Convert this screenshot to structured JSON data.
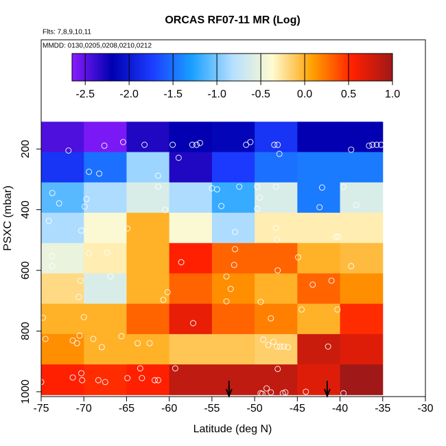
{
  "chart_data": {
    "type": "heatmap",
    "title": "ORCAS RF07-11 MR (Log)",
    "flights": "Flts: 7,8,9,10,11",
    "dates": "MMDD: 0130,0205,0208,0210,0212",
    "xlabel": "Latitude (deg N)",
    "ylabel": "PSXC (mbar)",
    "xlim": [
      -75,
      -30
    ],
    "xticks": [
      -75,
      -70,
      -65,
      -60,
      -55,
      -50,
      -45,
      -40,
      -35,
      -30
    ],
    "ylim": [
      1016,
      -160
    ],
    "yticks": [
      200,
      400,
      600,
      800,
      1000
    ],
    "x_edges": [
      -75,
      -70,
      -65,
      -60,
      -55,
      -50,
      -45,
      -40,
      -35
    ],
    "y_edges": [
      110,
      210,
      310,
      410,
      510,
      610,
      710,
      810,
      910,
      1010
    ],
    "z": [
      [
        -2.45,
        -2.6,
        -2.3,
        -2.2,
        -2.15,
        -1.8,
        -2.2,
        -2.2
      ],
      [
        -1.8,
        -1.5,
        -0.9,
        -2.3,
        -1.75,
        -1.5,
        -1.45,
        -1.45
      ],
      [
        -1.1,
        -0.85,
        -0.6,
        -0.85,
        -1.2,
        -0.6,
        -1.45,
        -0.6
      ],
      [
        -0.85,
        -0.4,
        0,
        -0.4,
        -0.85,
        -0.3,
        -0.3,
        -0.3
      ],
      [
        -0.5,
        -0.3,
        0,
        0.55,
        0.3,
        0.3,
        0,
        -0.05
      ],
      [
        -0.2,
        -0.6,
        0,
        0.3,
        0.15,
        0,
        0.3,
        0.15
      ],
      [
        0,
        0,
        0.3,
        0.65,
        0.3,
        0.2,
        0,
        0.5
      ],
      [
        0.15,
        0,
        0,
        -0.1,
        -0.1,
        -0.15,
        0.8,
        0.7
      ],
      [
        0.55,
        0.5,
        0.55,
        0.85,
        0.85,
        0.85,
        0.7,
        1.0
      ]
    ],
    "zlim": [
      -2.65,
      1.0
    ],
    "zticks": [
      -2.5,
      -2.0,
      -1.5,
      -1.0,
      -0.5,
      0.0,
      0.5,
      1.0
    ],
    "colors": [
      "#8a1cff",
      "#0000b0",
      "#1c3cff",
      "#1aa0ff",
      "#b5dfff",
      "#fffbd0",
      "#ffa000",
      "#ff2000",
      "#a01818"
    ],
    "points": {
      "x": [
        -71.8,
        -67.6,
        -65.4,
        -62.9,
        -59.6,
        -57.3,
        -56.4,
        -56.8,
        -51,
        -50.5,
        -47.7,
        -47.3,
        -47.1,
        -38.7,
        -36.6,
        -36.2,
        -35.7,
        -35.2,
        -58.9,
        -69.4,
        -68.2,
        -61.3,
        -61.3,
        -73.7,
        -55,
        -54.4,
        -51.8,
        -49.7,
        -47.5,
        -42.1,
        -39.6,
        -69.7,
        -72.9,
        -69.9,
        -53.9,
        -49.4,
        -49.7,
        -42.4,
        -38.1,
        -60.5,
        -74.1,
        -64.9,
        -70.3,
        -52.3,
        -47.5,
        -47.4,
        -40.5,
        -40.2,
        -73.7,
        -69.4,
        -67.3,
        -52.3,
        -58.6,
        -52.4,
        -73.7,
        -44.9,
        -38.7,
        -47.3,
        -66.9,
        -53.3,
        -70.4,
        -43.2,
        -41,
        -52.8,
        -60.2,
        -60.7,
        -70.6,
        -53.3,
        -49.3,
        -40.3,
        -44.5,
        -74.8,
        -70,
        -57.2,
        -48.1,
        -74.5,
        -71.3,
        -70.8,
        -70.5,
        -68.9,
        -67.9,
        -65.6,
        -63.7,
        -62.3,
        -49,
        -48.4,
        -47.8,
        -47.4,
        -47,
        -46.6,
        -46.1,
        -41.4,
        -75,
        -71.3,
        -70.3,
        -70.2,
        -68.3,
        -67.5,
        -64.9,
        -63.4,
        -63.2,
        -61.7,
        -61.3,
        -59.3,
        -48.6,
        -48.1,
        -49.3,
        -49.1,
        -47.3,
        -46.7,
        -46.4,
        -44,
        -39.6
      ],
      "y": [
        205,
        189,
        177,
        186,
        186,
        186,
        180,
        186,
        186,
        177,
        186,
        186,
        216,
        202,
        189,
        186,
        186,
        186,
        229,
        275,
        281,
        288,
        324,
        345,
        329,
        333,
        324,
        324,
        324,
        327,
        324,
        365,
        379,
        390,
        388,
        360,
        397,
        392,
        385,
        401,
        437,
        462,
        469,
        473,
        460,
        498,
        489,
        489,
        553,
        544,
        541,
        530,
        573,
        582,
        586,
        557,
        586,
        600,
        620,
        620,
        634,
        647,
        634,
        661,
        672,
        697,
        688,
        702,
        704,
        729,
        729,
        756,
        754,
        774,
        758,
        826,
        831,
        840,
        815,
        826,
        853,
        817,
        840,
        840,
        828,
        846,
        835,
        851,
        851,
        851,
        853,
        851,
        968,
        953,
        939,
        962,
        962,
        968,
        955,
        923,
        955,
        962,
        962,
        923,
        989,
        1002,
        1005,
        1007,
        925,
        1005,
        1002,
        1000,
        1005
      ]
    },
    "arrows_x": [
      -53,
      -41.5
    ]
  }
}
